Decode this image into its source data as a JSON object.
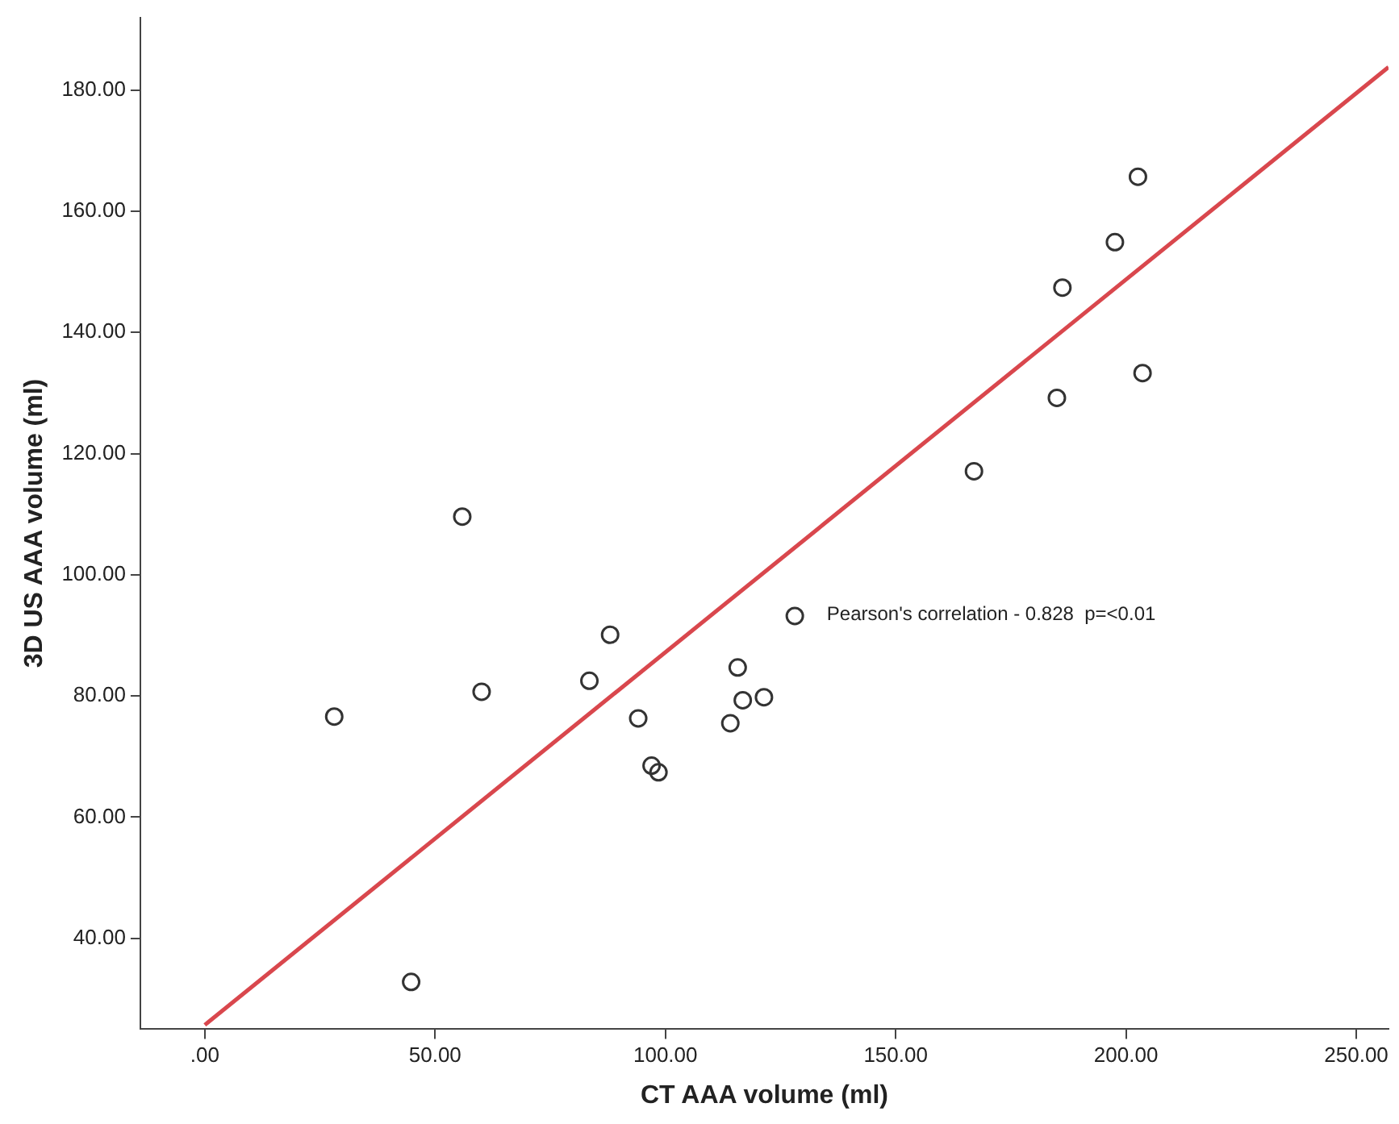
{
  "chart_data": {
    "type": "scatter",
    "xlabel": "CT AAA volume (ml)",
    "ylabel": "3D US AAA volume (ml)",
    "xlim": [
      -14,
      257
    ],
    "ylim": [
      25,
      192
    ],
    "xticks": [
      {
        "value": 0,
        "label": ".00"
      },
      {
        "value": 50,
        "label": "50.00"
      },
      {
        "value": 100,
        "label": "100.00"
      },
      {
        "value": 150,
        "label": "150.00"
      },
      {
        "value": 200,
        "label": "200.00"
      },
      {
        "value": 250,
        "label": "250.00"
      }
    ],
    "yticks": [
      {
        "value": 40,
        "label": "40.00"
      },
      {
        "value": 60,
        "label": "60.00"
      },
      {
        "value": 80,
        "label": "80.00"
      },
      {
        "value": 100,
        "label": "100.00"
      },
      {
        "value": 120,
        "label": "120.00"
      },
      {
        "value": 140,
        "label": "140.00"
      },
      {
        "value": 160,
        "label": "160.00"
      },
      {
        "value": 180,
        "label": "180.00"
      }
    ],
    "grid": false,
    "legend": false,
    "annotations": [
      "Pearson's correlation - 0.828  p=<0.01"
    ],
    "series": [
      {
        "marker": "circle",
        "color": "#333333",
        "x": [
          55.9,
          28.1,
          60.1,
          44.8,
          88.0,
          83.5,
          94.1,
          97.0,
          98.5,
          115.7,
          116.8,
          121.4,
          114.1,
          128.1,
          202.6,
          197.6,
          186.2,
          203.6,
          185.0,
          167.0
        ],
        "values": [
          109.6,
          76.6,
          80.7,
          32.8,
          90.1,
          82.5,
          76.3,
          68.5,
          67.4,
          84.7,
          79.3,
          79.8,
          75.5,
          93.2,
          165.7,
          154.9,
          147.4,
          133.3,
          129.2,
          117.1
        ]
      },
      {
        "type": "line",
        "color": "#d9474d",
        "line_style": "solid",
        "x": [
          0,
          257
        ],
        "values": [
          25.7,
          183.8
        ]
      }
    ]
  }
}
